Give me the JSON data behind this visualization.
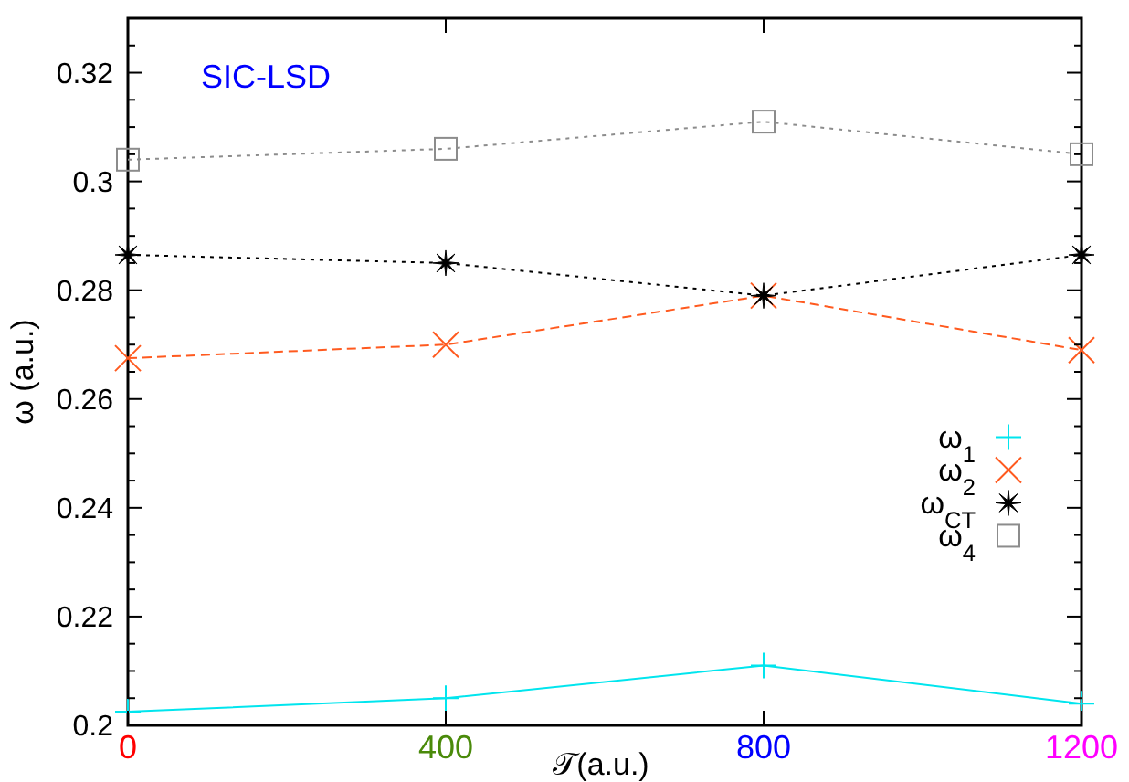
{
  "chart_data": {
    "type": "line",
    "annotations": [
      "SIC-LSD"
    ],
    "xlabel": "𝒯(a.u.)",
    "ylabel": "ω (a.u.)",
    "x": [
      0,
      400,
      800,
      1200
    ],
    "xlim": [
      0,
      1200
    ],
    "xticks": [
      0,
      400,
      800,
      1200
    ],
    "ylim": [
      0.2,
      0.33
    ],
    "yticks": [
      0.2,
      0.22,
      0.24,
      0.26,
      0.28,
      0.3,
      0.32
    ],
    "grid": false,
    "legend": "right",
    "series": [
      {
        "name": "ω$_{1}$",
        "color": "#00e5ee",
        "marker": "cross",
        "line_style": "solid",
        "values": [
          0.2025,
          0.205,
          0.211,
          0.204
        ]
      },
      {
        "name": "ω$_{2}$",
        "color": "#ff5a1f",
        "marker": "x",
        "line_style": "dashed",
        "values": [
          0.2675,
          0.27,
          0.279,
          0.269
        ]
      },
      {
        "name": "ω$_{CT}$",
        "color": "#000000",
        "marker": "star",
        "line_style": "dotted",
        "values": [
          0.2865,
          0.285,
          0.279,
          0.2865
        ]
      },
      {
        "name": "ω$_{4}$",
        "color": "#8c8c8c",
        "marker": "square",
        "line_style": "dotted",
        "values": [
          0.304,
          0.306,
          0.311,
          0.305
        ]
      }
    ]
  }
}
